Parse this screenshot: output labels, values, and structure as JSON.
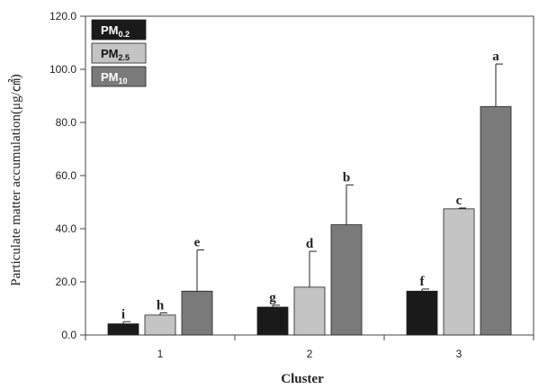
{
  "chart_data": {
    "type": "bar",
    "xlabel": "Cluster",
    "ylabel": "Particulate matter accumulation(μg/㎠)",
    "categories": [
      "1",
      "2",
      "3"
    ],
    "ylim": [
      0,
      120
    ],
    "yticks": [
      "0.0",
      "20.0",
      "40.0",
      "60.0",
      "80.0",
      "100.0",
      "120.0"
    ],
    "legend_position": "top-left",
    "grid": false,
    "series": [
      {
        "name": "PM0.2",
        "label_main": "PM",
        "label_sub": "0.2",
        "color": "#1a1a1a",
        "values": [
          4.2,
          10.5,
          16.5
        ],
        "errors": [
          0.8,
          0.7,
          0.8
        ],
        "letters": [
          "i",
          "g",
          "f"
        ]
      },
      {
        "name": "PM2.5",
        "label_main": "PM",
        "label_sub": "2.5",
        "color": "#c4c4c4",
        "values": [
          7.5,
          18.0,
          47.5
        ],
        "errors": [
          0.8,
          13.5,
          0.3
        ],
        "letters": [
          "h",
          "d",
          "c"
        ]
      },
      {
        "name": "PM10",
        "label_main": "PM",
        "label_sub": "10",
        "color": "#7a7a7a",
        "values": [
          16.5,
          41.5,
          86.0
        ],
        "errors": [
          15.5,
          15.0,
          16.0
        ],
        "letters": [
          "e",
          "b",
          "a"
        ]
      }
    ]
  }
}
